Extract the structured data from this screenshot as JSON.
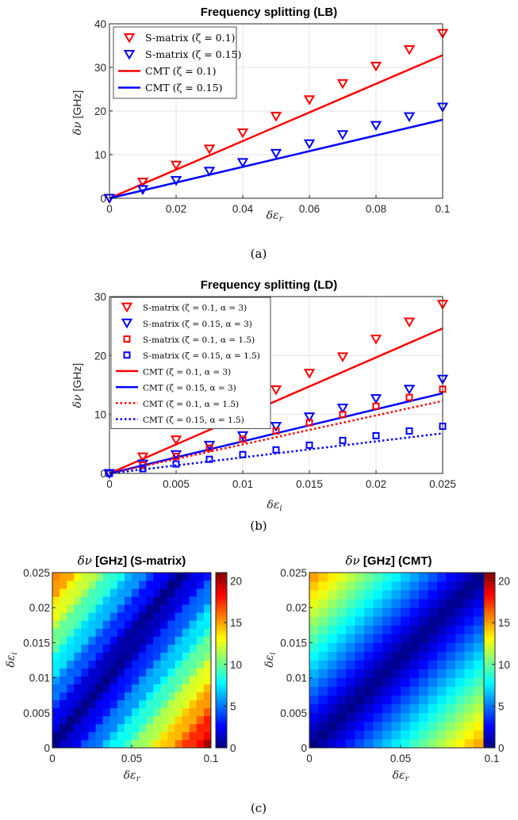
{
  "chart_data": [
    {
      "type": "line",
      "title": "Frequency splitting (LB)",
      "xlabel": "δε_r",
      "ylabel": "δν [GHz]",
      "xlim": [
        0,
        0.1
      ],
      "ylim": [
        0,
        40
      ],
      "xticks": [
        "0",
        "0.02",
        "0.04",
        "0.06",
        "0.08",
        "0.1"
      ],
      "yticks": [
        "0",
        "10",
        "20",
        "30",
        "40"
      ],
      "grid": true,
      "legend_position": "top-left",
      "caption": "(a)",
      "series": [
        {
          "name": "S-matrix (ζ = 0.1)",
          "kind": "marker",
          "marker": "triangle-down",
          "color": "#ff0000",
          "x": [
            0,
            0.01,
            0.02,
            0.03,
            0.04,
            0.05,
            0.06,
            0.07,
            0.08,
            0.09,
            0.1
          ],
          "y": [
            0,
            3.7,
            7.6,
            11.3,
            15.0,
            18.8,
            22.6,
            26.3,
            30.3,
            34.1,
            37.8
          ]
        },
        {
          "name": "S-matrix (ζ = 0.15)",
          "kind": "marker",
          "marker": "triangle-down",
          "color": "#0000ff",
          "x": [
            0,
            0.01,
            0.02,
            0.03,
            0.04,
            0.05,
            0.06,
            0.07,
            0.08,
            0.09,
            0.1
          ],
          "y": [
            0,
            2.0,
            4.1,
            6.2,
            8.2,
            10.3,
            12.5,
            14.6,
            16.7,
            18.7,
            20.9
          ]
        },
        {
          "name": "CMT (ζ = 0.1)",
          "kind": "line",
          "dash": "solid",
          "color": "#ff0000",
          "x": [
            0,
            0.1
          ],
          "y": [
            0,
            32.8
          ]
        },
        {
          "name": "CMT (ζ = 0.15)",
          "kind": "line",
          "dash": "solid",
          "color": "#0000ff",
          "x": [
            0,
            0.1
          ],
          "y": [
            0,
            18.0
          ]
        }
      ]
    },
    {
      "type": "line",
      "title": "Frequency splitting (LD)",
      "xlabel": "δε_i",
      "ylabel": "δν [GHz]",
      "xlim": [
        0,
        0.025
      ],
      "ylim": [
        0,
        30
      ],
      "xticks": [
        "0",
        "0.005",
        "0.01",
        "0.015",
        "0.02",
        "0.025"
      ],
      "yticks": [
        "0",
        "10",
        "20",
        "30"
      ],
      "grid": true,
      "legend_position": "top-left",
      "caption": "(b)",
      "series": [
        {
          "name": "S-matrix (ζ = 0.1, α = 3)",
          "kind": "marker",
          "marker": "triangle-down",
          "color": "#ff0000",
          "x": [
            0,
            0.0025,
            0.005,
            0.0075,
            0.01,
            0.0125,
            0.015,
            0.0175,
            0.02,
            0.0225,
            0.025
          ],
          "y": [
            0,
            2.8,
            5.7,
            8.5,
            11.4,
            14.2,
            17.0,
            19.8,
            22.8,
            25.7,
            28.7
          ]
        },
        {
          "name": "S-matrix (ζ = 0.15, α = 3)",
          "kind": "marker",
          "marker": "triangle-down",
          "color": "#0000ff",
          "x": [
            0,
            0.0025,
            0.005,
            0.0075,
            0.01,
            0.0125,
            0.015,
            0.0175,
            0.02,
            0.0225,
            0.025
          ],
          "y": [
            0,
            1.6,
            3.2,
            4.8,
            6.4,
            8.0,
            9.6,
            11.1,
            12.7,
            14.3,
            16.0
          ]
        },
        {
          "name": "S-matrix (ζ = 0.1, α = 1.5)",
          "kind": "marker",
          "marker": "square",
          "color": "#ff0000",
          "x": [
            0,
            0.0025,
            0.005,
            0.0075,
            0.01,
            0.0125,
            0.015,
            0.0175,
            0.02,
            0.0225,
            0.025
          ],
          "y": [
            0,
            1.4,
            2.9,
            4.3,
            5.8,
            7.2,
            8.6,
            10.0,
            11.4,
            12.9,
            14.3
          ]
        },
        {
          "name": "S-matrix (ζ = 0.15, α = 1.5)",
          "kind": "marker",
          "marker": "square",
          "color": "#0000ff",
          "x": [
            0,
            0.0025,
            0.005,
            0.0075,
            0.01,
            0.0125,
            0.015,
            0.0175,
            0.02,
            0.0225,
            0.025
          ],
          "y": [
            0,
            0.8,
            1.6,
            2.4,
            3.2,
            4.0,
            4.8,
            5.6,
            6.4,
            7.2,
            8.0
          ]
        },
        {
          "name": "CMT (ζ = 0.1, α = 3)",
          "kind": "line",
          "dash": "solid",
          "color": "#ff0000",
          "x": [
            0,
            0.025
          ],
          "y": [
            0,
            24.6
          ]
        },
        {
          "name": "CMT (ζ = 0.15, α = 3)",
          "kind": "line",
          "dash": "solid",
          "color": "#0000ff",
          "x": [
            0,
            0.025
          ],
          "y": [
            0,
            13.6
          ]
        },
        {
          "name": "CMT (ζ = 0.1, α = 1.5)",
          "kind": "line",
          "dash": "dotted",
          "color": "#ff0000",
          "x": [
            0,
            0.025
          ],
          "y": [
            0,
            12.3
          ]
        },
        {
          "name": "CMT (ζ = 0.15, α = 1.5)",
          "kind": "line",
          "dash": "dotted",
          "color": "#0000ff",
          "x": [
            0,
            0.025
          ],
          "y": [
            0,
            6.8
          ]
        }
      ]
    },
    {
      "type": "heatmap",
      "title": "δν [GHz] (S-matrix)",
      "xlabel": "δε_r",
      "ylabel": "δε_i",
      "xlim": [
        0,
        0.1
      ],
      "ylim": [
        0,
        0.025
      ],
      "xticks": [
        "0",
        "0.05",
        "0.1"
      ],
      "yticks": [
        "0",
        "0.005",
        "0.01",
        "0.015",
        "0.02",
        "0.025"
      ],
      "colorbar_ticks": [
        "0",
        "5",
        "10",
        "15",
        "20"
      ],
      "clim": [
        0,
        21
      ],
      "colormap": "jet",
      "model": "|ν(δε_r) − ν(δε_i) slope-scaled difference|; valley along the diagonal, max ≈ 20 at corners",
      "grid_size": [
        22,
        22
      ],
      "corner_values": {
        "bottom-left": 0,
        "top-left": 15,
        "bottom-right": 20,
        "top-right": 0
      }
    },
    {
      "type": "heatmap",
      "title": "δν [GHz] (CMT)",
      "xlabel": "δε_r",
      "ylabel": "δε_i",
      "xlim": [
        0,
        0.1
      ],
      "ylim": [
        0,
        0.025
      ],
      "xticks": [
        "0",
        "0.05",
        "0.1"
      ],
      "yticks": [
        "0",
        "0.005",
        "0.01",
        "0.015",
        "0.02",
        "0.025"
      ],
      "colorbar_ticks": [
        "0",
        "5",
        "10",
        "15",
        "20"
      ],
      "clim": [
        0,
        21
      ],
      "colormap": "jet",
      "grid_size": [
        20,
        20
      ],
      "corner_values": {
        "bottom-left": 0,
        "top-left": 14,
        "bottom-right": 16,
        "top-right": 2
      }
    }
  ],
  "caption_c": "(c)",
  "colors": {
    "red": "#ff0000",
    "blue": "#0000ff",
    "grid": "#e3e3e3",
    "axis": "#262626"
  }
}
